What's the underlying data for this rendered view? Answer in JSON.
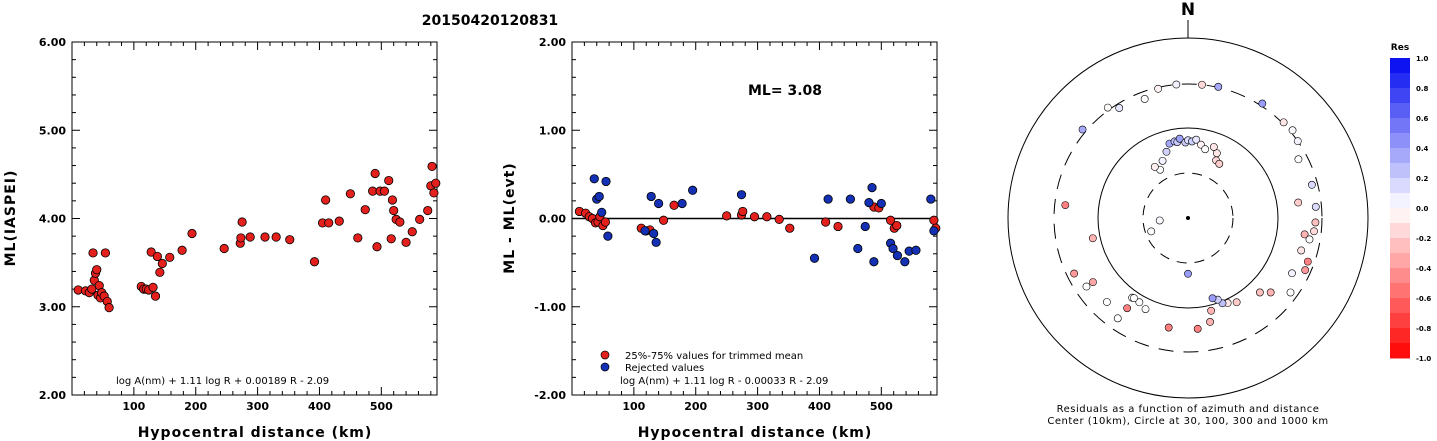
{
  "event_title": "20150420120831",
  "chart_data": [
    {
      "type": "scatter",
      "ylabel": "ML(IASPEI)",
      "xlabel": "Hypocentral distance (km)",
      "xlim": [
        0,
        590
      ],
      "ylim": [
        2.0,
        6.0
      ],
      "x_ticks": [
        "100",
        "200",
        "300",
        "400",
        "500"
      ],
      "y_ticks": [
        "2.00",
        "3.00",
        "4.00",
        "5.00",
        "6.00"
      ],
      "formula": "log A(nm) + 1.11 log R + 0.00189 R - 2.09",
      "marker_color": "#e3201c",
      "points": [
        [
          10,
          3.19
        ],
        [
          22,
          3.18
        ],
        [
          28,
          3.16
        ],
        [
          32,
          3.2
        ],
        [
          34,
          3.61
        ],
        [
          36,
          3.3
        ],
        [
          38,
          3.38
        ],
        [
          40,
          3.42
        ],
        [
          42,
          3.13
        ],
        [
          44,
          3.24
        ],
        [
          46,
          3.1
        ],
        [
          48,
          3.16
        ],
        [
          52,
          3.12
        ],
        [
          54,
          3.61
        ],
        [
          57,
          3.06
        ],
        [
          60,
          2.99
        ],
        [
          112,
          3.23
        ],
        [
          116,
          3.2
        ],
        [
          120,
          3.2
        ],
        [
          124,
          3.19
        ],
        [
          128,
          3.62
        ],
        [
          131,
          3.22
        ],
        [
          135,
          3.12
        ],
        [
          138,
          3.57
        ],
        [
          142,
          3.39
        ],
        [
          146,
          3.49
        ],
        [
          158,
          3.56
        ],
        [
          178,
          3.64
        ],
        [
          194,
          3.83
        ],
        [
          246,
          3.66
        ],
        [
          272,
          3.72
        ],
        [
          273,
          3.78
        ],
        [
          275,
          3.96
        ],
        [
          288,
          3.79
        ],
        [
          312,
          3.79
        ],
        [
          330,
          3.79
        ],
        [
          352,
          3.76
        ],
        [
          392,
          3.51
        ],
        [
          405,
          3.95
        ],
        [
          410,
          4.21
        ],
        [
          415,
          3.95
        ],
        [
          432,
          3.97
        ],
        [
          450,
          4.28
        ],
        [
          462,
          3.78
        ],
        [
          474,
          4.1
        ],
        [
          486,
          4.31
        ],
        [
          490,
          4.51
        ],
        [
          493,
          3.68
        ],
        [
          498,
          4.31
        ],
        [
          505,
          4.31
        ],
        [
          512,
          4.43
        ],
        [
          516,
          3.77
        ],
        [
          518,
          4.21
        ],
        [
          520,
          4.09
        ],
        [
          524,
          3.99
        ],
        [
          530,
          3.96
        ],
        [
          540,
          3.73
        ],
        [
          550,
          3.85
        ],
        [
          562,
          3.99
        ],
        [
          575,
          4.09
        ],
        [
          580,
          4.37
        ],
        [
          582,
          4.59
        ],
        [
          585,
          4.29
        ],
        [
          588,
          4.4
        ]
      ]
    },
    {
      "type": "scatter",
      "ylabel": "ML - ML(evt)",
      "xlabel": "Hypocentral distance (km)",
      "xlim": [
        0,
        590
      ],
      "ylim": [
        -2.0,
        2.0
      ],
      "x_ticks": [
        "100",
        "200",
        "300",
        "400",
        "500"
      ],
      "y_ticks": [
        "-2.00",
        "-1.00",
        "0.00",
        "1.00",
        "2.00"
      ],
      "annotation": "ML= 3.08",
      "formula": "log A(nm) + 1.11 log R - 0.00033 R - 2.09",
      "legend": [
        {
          "label": "25%-75% values for trimmed mean",
          "color": "#e3201c"
        },
        {
          "label": "Rejected values",
          "color": "#1430b4"
        }
      ],
      "series": [
        {
          "name": "25%-75% values for trimmed mean",
          "color": "#e3201c",
          "points": [
            [
              12,
              0.08
            ],
            [
              22,
              0.06
            ],
            [
              28,
              0.02
            ],
            [
              33,
              0.0
            ],
            [
              38,
              -0.05
            ],
            [
              42,
              -0.04
            ],
            [
              45,
              0.02
            ],
            [
              50,
              -0.08
            ],
            [
              54,
              -0.04
            ],
            [
              112,
              -0.11
            ],
            [
              120,
              -0.14
            ],
            [
              126,
              -0.13
            ],
            [
              148,
              -0.02
            ],
            [
              165,
              0.15
            ],
            [
              250,
              0.03
            ],
            [
              274,
              0.04
            ],
            [
              276,
              0.08
            ],
            [
              295,
              0.02
            ],
            [
              315,
              0.02
            ],
            [
              335,
              -0.01
            ],
            [
              352,
              -0.11
            ],
            [
              410,
              -0.04
            ],
            [
              430,
              -0.09
            ],
            [
              488,
              0.13
            ],
            [
              496,
              0.12
            ],
            [
              515,
              -0.02
            ],
            [
              521,
              -0.11
            ],
            [
              525,
              -0.08
            ],
            [
              585,
              -0.02
            ],
            [
              588,
              -0.11
            ]
          ]
        },
        {
          "name": "Rejected values",
          "color": "#1430b4",
          "points": [
            [
              36,
              0.45
            ],
            [
              40,
              0.22
            ],
            [
              44,
              0.25
            ],
            [
              48,
              0.07
            ],
            [
              55,
              0.42
            ],
            [
              58,
              -0.2
            ],
            [
              118,
              -0.14
            ],
            [
              128,
              0.25
            ],
            [
              132,
              -0.17
            ],
            [
              136,
              -0.27
            ],
            [
              140,
              0.17
            ],
            [
              178,
              0.17
            ],
            [
              195,
              0.32
            ],
            [
              274,
              0.27
            ],
            [
              392,
              -0.45
            ],
            [
              414,
              0.22
            ],
            [
              450,
              0.22
            ],
            [
              462,
              -0.34
            ],
            [
              474,
              -0.09
            ],
            [
              480,
              0.18
            ],
            [
              485,
              0.35
            ],
            [
              488,
              -0.49
            ],
            [
              500,
              0.17
            ],
            [
              515,
              -0.28
            ],
            [
              519,
              -0.34
            ],
            [
              526,
              -0.42
            ],
            [
              538,
              -0.49
            ],
            [
              545,
              -0.37
            ],
            [
              556,
              -0.36
            ],
            [
              580,
              0.22
            ],
            [
              585,
              -0.14
            ]
          ]
        }
      ]
    },
    {
      "type": "scatter",
      "subtype": "polar",
      "north_label": "N",
      "caption_line1": "Residuals as a function of azimuth and distance",
      "caption_line2": "Center (10km), Circle at 30, 100, 300 and 1000 km",
      "rings_km": [
        30,
        100,
        300,
        1000
      ],
      "colorbar": {
        "title": "Res",
        "ticks": [
          "1.0",
          "0.8",
          "0.6",
          "0.4",
          "0.2",
          "0.0",
          "-0.2",
          "-0.4",
          "-0.6",
          "-0.8",
          "-1.0"
        ],
        "max_color": "#0008f0",
        "mid_color": "#ffffff",
        "min_color": "#ff0000"
      },
      "points": [
        [
          -5,
          300,
          0.05
        ],
        [
          6,
          300,
          -0.15
        ],
        [
          13,
          305,
          0.35
        ],
        [
          -13,
          290,
          -0.05
        ],
        [
          33,
          320,
          0.4
        ],
        [
          -36,
          320,
          -0.02
        ],
        [
          -50,
          330,
          0.35
        ],
        [
          45,
          310,
          -0.1
        ],
        [
          50,
          320,
          0.02
        ],
        [
          55,
          300,
          0.05
        ],
        [
          -20,
          250,
          0.0
        ],
        [
          -32,
          270,
          0.1
        ],
        [
          -14,
          70,
          0.35
        ],
        [
          -10,
          72,
          0.28
        ],
        [
          -8,
          70,
          0.22
        ],
        [
          -6,
          76,
          0.38
        ],
        [
          -2,
          68,
          0.2
        ],
        [
          0,
          72,
          0.15
        ],
        [
          3,
          70,
          0.2
        ],
        [
          6,
          74,
          0.1
        ],
        [
          10,
          66,
          -0.05
        ],
        [
          14,
          60,
          0.0
        ],
        [
          -18,
          58,
          0.18
        ],
        [
          -24,
          48,
          0.05
        ],
        [
          -30,
          40,
          0.0
        ],
        [
          -33,
          46,
          -0.06
        ],
        [
          24,
          60,
          -0.1
        ],
        [
          26,
          50,
          -0.15
        ],
        [
          30,
          48,
          -0.2
        ],
        [
          20,
          68,
          -0.1
        ],
        [
          -110,
          26,
          -0.02
        ],
        [
          -95,
          20,
          0.02
        ],
        [
          180,
          40,
          0.4
        ],
        [
          62,
          240,
          0.0
        ],
        [
          75,
          260,
          0.15
        ],
        [
          85,
          260,
          0.15
        ],
        [
          92,
          255,
          -0.25
        ],
        [
          96,
          250,
          -0.15
        ],
        [
          98,
          200,
          -0.3
        ],
        [
          100,
          230,
          0.0
        ],
        [
          106,
          200,
          -0.1
        ],
        [
          110,
          255,
          -0.5
        ],
        [
          114,
          260,
          -0.4
        ],
        [
          118,
          200,
          0.05
        ],
        [
          82,
          170,
          -0.2
        ],
        [
          126,
          250,
          0.0
        ],
        [
          132,
          170,
          -0.3
        ],
        [
          136,
          140,
          -0.25
        ],
        [
          150,
          120,
          -0.2
        ],
        [
          155,
          110,
          -0.1
        ],
        [
          158,
          105,
          0.25
        ],
        [
          160,
          92,
          0.2
        ],
        [
          163,
          85,
          0.4
        ],
        [
          166,
          115,
          -0.3
        ],
        [
          168,
          150,
          -0.3
        ],
        [
          175,
          170,
          -0.5
        ],
        [
          190,
          170,
          -0.5
        ],
        [
          205,
          130,
          0.0
        ],
        [
          210,
          120,
          0.0
        ],
        [
          214,
          160,
          -0.5
        ],
        [
          224,
          195,
          0.0
        ],
        [
          236,
          185,
          -0.35
        ],
        [
          -84,
          230,
          -0.5
        ],
        [
          -102,
          120,
          -0.3
        ],
        [
          -116,
          250,
          -0.4
        ],
        [
          -124,
          225,
          0.0
        ],
        [
          -145,
          225,
          0.0
        ],
        [
          -145,
          120,
          0.0
        ],
        [
          -146,
          118,
          0.0
        ]
      ]
    }
  ]
}
